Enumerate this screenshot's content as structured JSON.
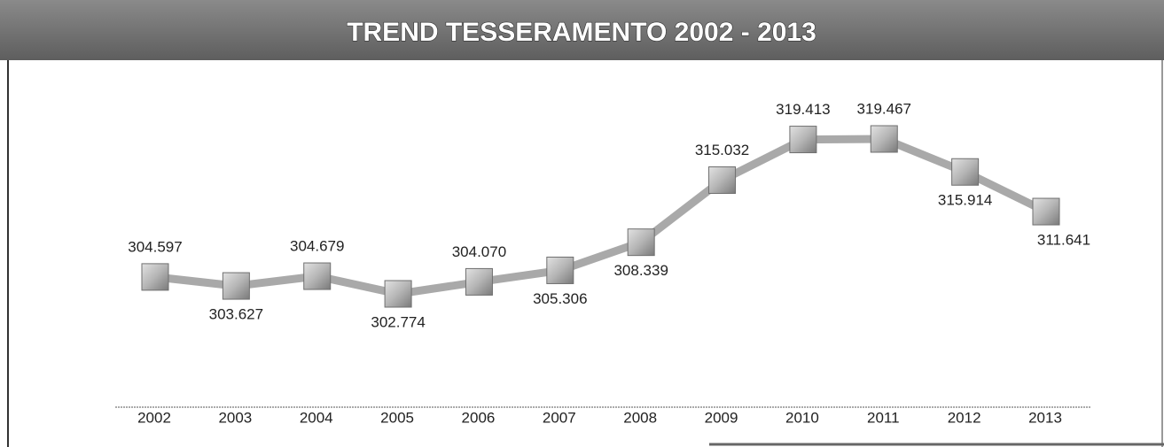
{
  "chart_data": {
    "type": "line",
    "title": "TREND TESSERAMENTO 2002 - 2013",
    "categories": [
      "2002",
      "2003",
      "2004",
      "2005",
      "2006",
      "2007",
      "2008",
      "2009",
      "2010",
      "2011",
      "2012",
      "2013"
    ],
    "series": [
      {
        "name": null,
        "color": "#a9a9a9",
        "values": [
          304597,
          303627,
          304679,
          302774,
          304070,
          305306,
          308339,
          315032,
          319413,
          319467,
          315914,
          311641
        ],
        "value_labels": [
          "304.597",
          "303.627",
          "304.679",
          "302.774",
          "304.070",
          "305.306",
          "308.339",
          "315.032",
          "319.413",
          "319.467",
          "315.914",
          "311.641"
        ]
      }
    ]
  }
}
